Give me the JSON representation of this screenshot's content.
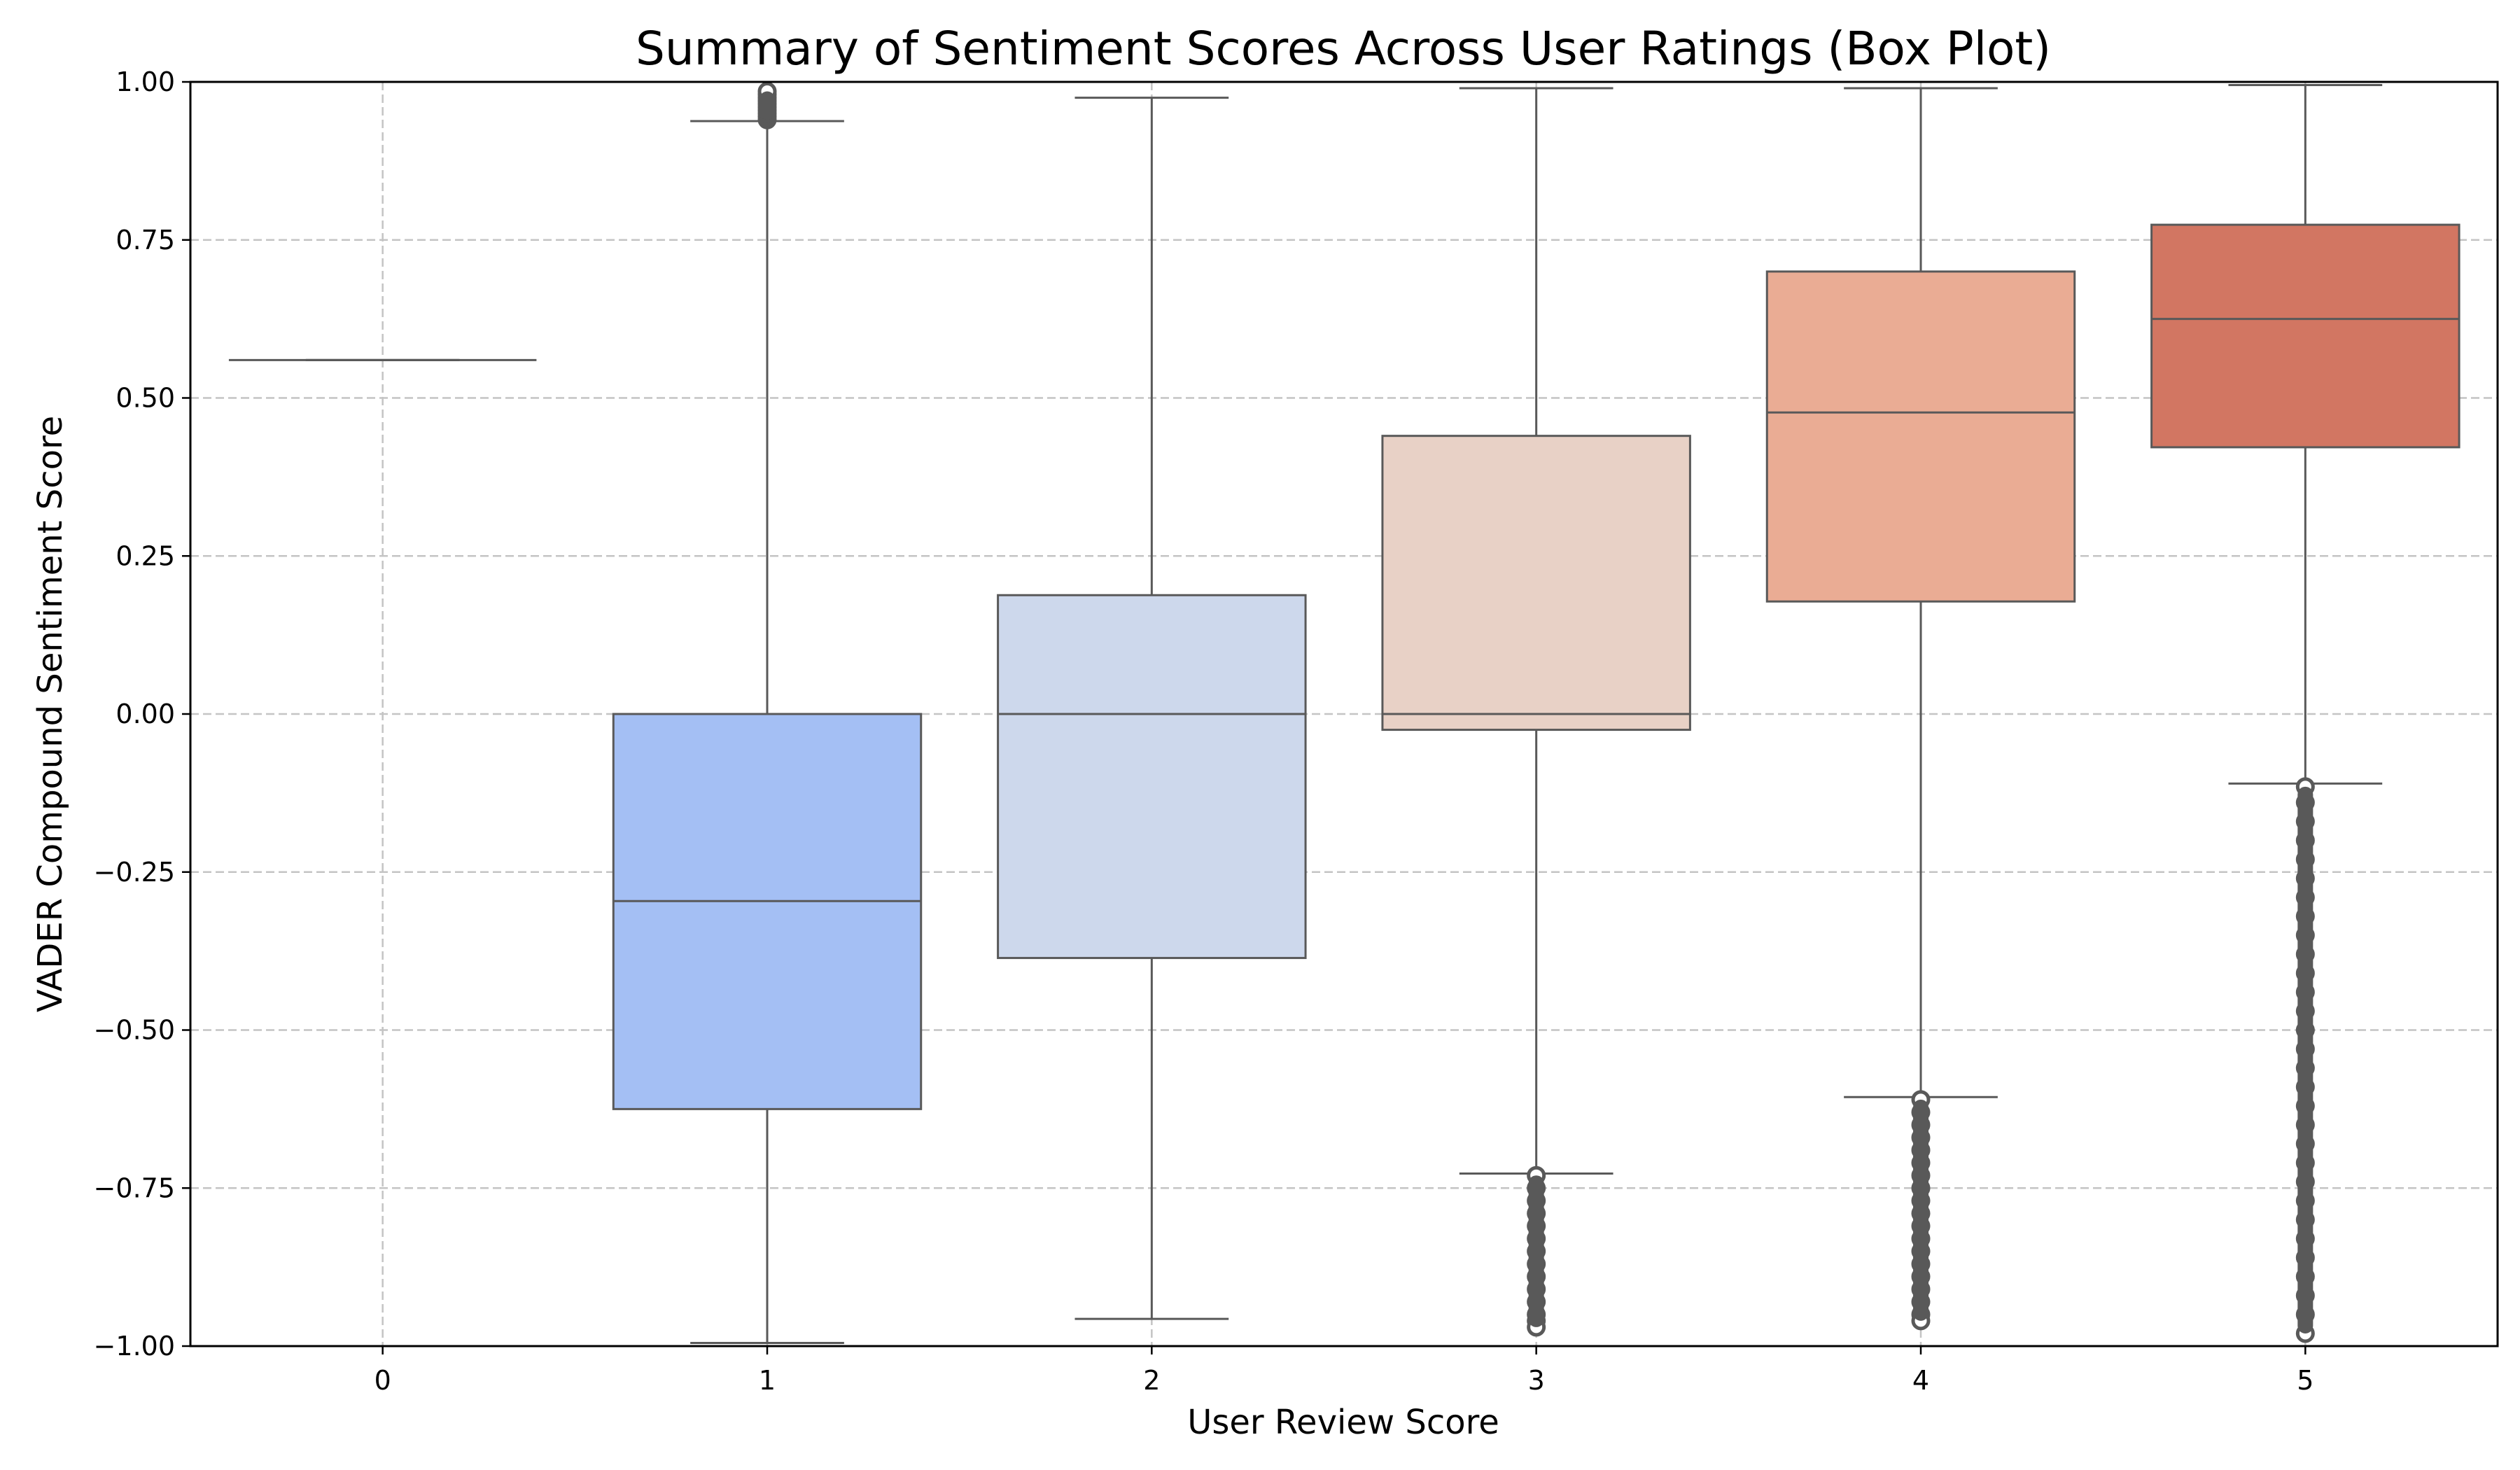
{
  "chart_data": {
    "type": "box",
    "title": "Summary of Sentiment Scores Across User Ratings (Box Plot)",
    "xlabel": "User Review Score",
    "ylabel": "VADER Compound Sentiment Score",
    "ylim": [
      -1.0,
      1.0
    ],
    "yticks": [
      "−1.00",
      "−0.75",
      "−0.50",
      "−0.25",
      "0.00",
      "0.25",
      "0.50",
      "0.75",
      "1.00"
    ],
    "categories": [
      "0",
      "1",
      "2",
      "3",
      "4",
      "5"
    ],
    "grid": true,
    "boxes": [
      {
        "category": "0",
        "whisker_low": 0.56,
        "q1": 0.56,
        "median": 0.56,
        "q3": 0.56,
        "whisker_high": 0.56,
        "color": "#3b4cc0",
        "outliers_low": [],
        "outliers_high": []
      },
      {
        "category": "1",
        "whisker_low": -0.995,
        "q1": -0.625,
        "median": -0.296,
        "q3": 0.0,
        "whisker_high": 0.938,
        "color": "#a4bff4",
        "outliers_low": [],
        "outliers_high": [
          0.94,
          0.945,
          0.95,
          0.955,
          0.96,
          0.965,
          0.97,
          0.975,
          0.98,
          0.985
        ]
      },
      {
        "category": "2",
        "whisker_low": -0.957,
        "q1": -0.386,
        "median": 0.0,
        "q3": 0.188,
        "whisker_high": 0.975,
        "color": "#cdd8ec",
        "outliers_low": [],
        "outliers_high": []
      },
      {
        "category": "3",
        "whisker_low": -0.727,
        "q1": -0.025,
        "median": 0.0,
        "q3": 0.44,
        "whisker_high": 0.99,
        "color": "#e8d1c6",
        "outliers_low": [
          -0.73,
          -0.75,
          -0.77,
          -0.79,
          -0.81,
          -0.83,
          -0.85,
          -0.87,
          -0.89,
          -0.91,
          -0.93,
          -0.95,
          -0.96,
          -0.97
        ],
        "outliers_high": []
      },
      {
        "category": "4",
        "whisker_low": -0.606,
        "q1": 0.178,
        "median": 0.477,
        "q3": 0.7,
        "whisker_high": 0.99,
        "color": "#eaac94",
        "outliers_low": [
          -0.61,
          -0.63,
          -0.65,
          -0.67,
          -0.69,
          -0.71,
          -0.73,
          -0.75,
          -0.77,
          -0.79,
          -0.81,
          -0.83,
          -0.85,
          -0.87,
          -0.89,
          -0.91,
          -0.93,
          -0.95,
          -0.96
        ],
        "outliers_high": []
      },
      {
        "category": "5",
        "whisker_low": -0.11,
        "q1": 0.422,
        "median": 0.625,
        "q3": 0.774,
        "whisker_high": 0.995,
        "color": "#d27662",
        "outliers_low": [
          -0.115,
          -0.14,
          -0.17,
          -0.2,
          -0.23,
          -0.26,
          -0.29,
          -0.32,
          -0.35,
          -0.38,
          -0.41,
          -0.44,
          -0.47,
          -0.5,
          -0.53,
          -0.56,
          -0.59,
          -0.62,
          -0.65,
          -0.68,
          -0.71,
          -0.74,
          -0.77,
          -0.8,
          -0.83,
          -0.86,
          -0.89,
          -0.92,
          -0.95,
          -0.98
        ],
        "outliers_high": []
      }
    ]
  }
}
